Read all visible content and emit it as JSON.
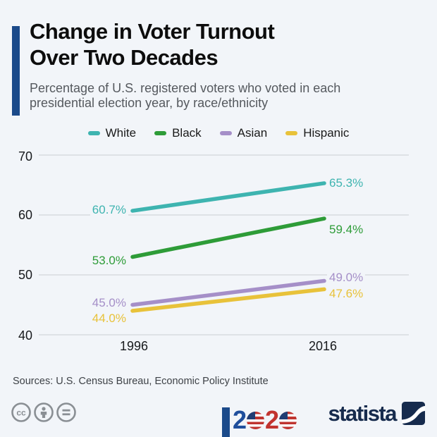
{
  "header": {
    "title_line1": "Change in Voter Turnout",
    "title_line2": "Over Two Decades",
    "subtitle": "Percentage of U.S. registered voters who voted in each presidential election year, by race/ethnicity",
    "accent_color": "#1b4a8a"
  },
  "chart_data": {
    "type": "line",
    "title": "Change in Voter Turnout Over Two Decades",
    "categories": [
      "1996",
      "2016"
    ],
    "series": [
      {
        "name": "White",
        "values": [
          60.7,
          65.3
        ],
        "labels": [
          "60.7%",
          "65.3%"
        ],
        "color": "#3eb4b0"
      },
      {
        "name": "Black",
        "values": [
          53.0,
          59.4
        ],
        "labels": [
          "53.0%",
          "59.4%"
        ],
        "color": "#2e9c38"
      },
      {
        "name": "Asian",
        "values": [
          45.0,
          49.0
        ],
        "labels": [
          "45.0%",
          "49.0%"
        ],
        "color": "#a58fc8"
      },
      {
        "name": "Hispanic",
        "values": [
          44.0,
          47.6
        ],
        "labels": [
          "44.0%",
          "47.6%"
        ],
        "color": "#e8c23a"
      }
    ],
    "xlabel": "",
    "ylabel": "",
    "ylim": [
      40,
      70
    ],
    "yticks": [
      "70",
      "60",
      "50",
      "40"
    ],
    "grid": true,
    "grid_color": "#c9ced4",
    "legend_position": "top",
    "unit": "%"
  },
  "footer": {
    "sources": "Sources: U.S. Census Bureau, Economic Policy Institute",
    "license_icons": [
      "cc-icon",
      "attribution-icon",
      "equal-icon"
    ],
    "campaign_logo": {
      "digit1": "2",
      "digit2": "2",
      "blue": "#1f4e9c",
      "red": "#c2342f"
    },
    "brand": {
      "name": "statista",
      "color": "#162b4d"
    }
  }
}
